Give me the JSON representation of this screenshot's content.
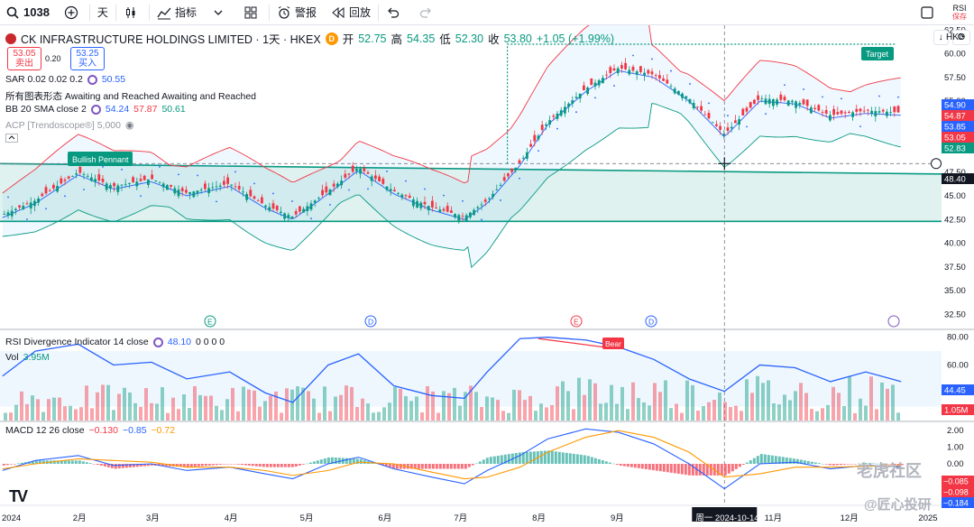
{
  "toolbar": {
    "symbol": "1038",
    "interval": "天",
    "indicators_label": "指标",
    "alert_label": "警报",
    "replay_label": "回放",
    "rsi_short": "RSI",
    "rsi_sub": "保存"
  },
  "header": {
    "title": "CK INFRASTRUCTURE HOLDINGS LIMITED · 1天 · HKEX",
    "badge": "D",
    "open_label": "开",
    "open": "52.75",
    "high_label": "高",
    "high": "54.35",
    "low_label": "低",
    "low": "52.30",
    "close_label": "收",
    "close": "53.80",
    "change": "+1.05 (+1.99%)",
    "sell_price": "53.05",
    "sell_label": "卖出",
    "buy_price": "53.25",
    "buy_label": "买入",
    "spread": "0.20",
    "currency": "HKD"
  },
  "legends": {
    "sar": {
      "label": "SAR 0.02 0.02 0.2",
      "value": "50.55"
    },
    "patterns": {
      "label": "所有图表形态 Awaiting and Reached Awaiting and Reached"
    },
    "bb": {
      "label": "BB 20 SMA close 2",
      "v1": "54.24",
      "v2": "57.87",
      "v3": "50.61"
    },
    "acp": {
      "label": "ACP [Trendoscope®] 5,000"
    },
    "rsi": {
      "label": "RSI Divergence Indicator 14 close",
      "value": "48.10",
      "zeros": "0 0 0 0"
    },
    "vol": {
      "label": "Vol",
      "value": "3.95M"
    },
    "macd": {
      "label": "MACD 12 26 close",
      "v1": "−0.130",
      "v2": "−0.85",
      "v3": "−0.72"
    }
  },
  "annotations": {
    "bullish_pennant": "Bullish Pennant",
    "target": "Target",
    "bear": "Bear",
    "crosshair_date": "周一 2024-10-14"
  },
  "price_axis": {
    "ticks": [
      "62.50",
      "60.00",
      "57.50",
      "55.00",
      "52.50",
      "50.00",
      "47.50",
      "45.00",
      "42.50",
      "40.00",
      "37.50",
      "35.00",
      "32.50"
    ],
    "tags": [
      {
        "value": "54.90",
        "color": "#2962ff"
      },
      {
        "value": "54.87",
        "color": "#f23645"
      },
      {
        "value": "53.85",
        "color": "#2962ff"
      },
      {
        "value": "53.05",
        "color": "#f23645"
      },
      {
        "value": "52.83",
        "color": "#089981"
      },
      {
        "value": "48.40",
        "color": "#131722"
      }
    ]
  },
  "rsi_axis": {
    "ticks": [
      "80.00",
      "60.00",
      "40.00"
    ],
    "tags": [
      {
        "value": "44.45",
        "color": "#2962ff"
      },
      {
        "value": "1.05M",
        "color": "#f23645"
      }
    ]
  },
  "macd_axis": {
    "ticks": [
      "2.00",
      "1.00",
      "0.00"
    ],
    "tags": [
      {
        "value": "−0.085",
        "color": "#f23645"
      },
      {
        "value": "−0.098",
        "color": "#f23645"
      },
      {
        "value": "−0.184",
        "color": "#2962ff"
      }
    ]
  },
  "time_axis": {
    "labels": [
      "2024",
      "2月",
      "3月",
      "4月",
      "5月",
      "6月",
      "7月",
      "8月",
      "9月",
      "11月",
      "12月",
      "2025"
    ]
  },
  "event_markers": [
    "E",
    "D",
    "E",
    "D"
  ],
  "watermarks": [
    "老虎社区",
    "@匠心投研"
  ],
  "chart_data": {
    "type": "line",
    "title": "CK INFRASTRUCTURE HOLDINGS LIMITED · 1天 · HKEX",
    "ylim": [
      31,
      63
    ],
    "price_series": {
      "name": "Close",
      "dates": [
        "2024-01-02",
        "2024-01-15",
        "2024-02-01",
        "2024-02-15",
        "2024-03-01",
        "2024-03-15",
        "2024-04-01",
        "2024-04-15",
        "2024-04-26",
        "2024-05-10",
        "2024-05-22",
        "2024-06-05",
        "2024-06-20",
        "2024-07-03",
        "2024-07-12",
        "2024-07-25",
        "2024-08-05",
        "2024-08-20",
        "2024-09-02",
        "2024-09-16",
        "2024-09-30",
        "2024-10-14",
        "2024-10-28",
        "2024-11-11",
        "2024-11-25",
        "2024-12-09",
        "2024-12-23"
      ],
      "values": [
        43.0,
        44.5,
        47.5,
        46.0,
        46.8,
        45.3,
        46.3,
        44.0,
        42.8,
        45.5,
        48.0,
        45.5,
        43.8,
        42.8,
        44.5,
        48.5,
        52.8,
        56.3,
        58.5,
        57.8,
        55.3,
        51.5,
        55.3,
        55.0,
        53.5,
        54.0,
        53.8
      ]
    },
    "rsi_series": {
      "name": "RSI",
      "ylim": [
        20,
        85
      ],
      "values": [
        52,
        70,
        75,
        60,
        62,
        50,
        55,
        40,
        33,
        60,
        68,
        45,
        38,
        36,
        55,
        79,
        80,
        78,
        73,
        64,
        50,
        41,
        60,
        58,
        48,
        55,
        48
      ]
    },
    "macd_series": {
      "ylim": [
        -2.5,
        2.5
      ],
      "macd": [
        -0.4,
        0.2,
        0.5,
        -0.1,
        0.0,
        -0.4,
        -0.2,
        -0.6,
        -0.9,
        0.0,
        0.4,
        -0.3,
        -0.8,
        -1.2,
        -0.4,
        0.5,
        1.5,
        2.1,
        1.9,
        1.2,
        0.0,
        -1.5,
        0.0,
        0.1,
        -0.3,
        -0.1,
        -0.18
      ],
      "signal": [
        -0.3,
        0.0,
        0.3,
        0.2,
        0.1,
        -0.2,
        -0.2,
        -0.4,
        -0.7,
        -0.4,
        0.1,
        0.0,
        -0.5,
        -0.9,
        -0.8,
        -0.2,
        0.7,
        1.6,
        2.0,
        1.6,
        0.7,
        -0.8,
        -0.6,
        -0.2,
        -0.2,
        -0.15,
        -0.1
      ]
    },
    "pennant_top_line": [
      48.4,
      47.3
    ],
    "pennant_bottom_line": [
      42.3,
      42.3
    ]
  }
}
